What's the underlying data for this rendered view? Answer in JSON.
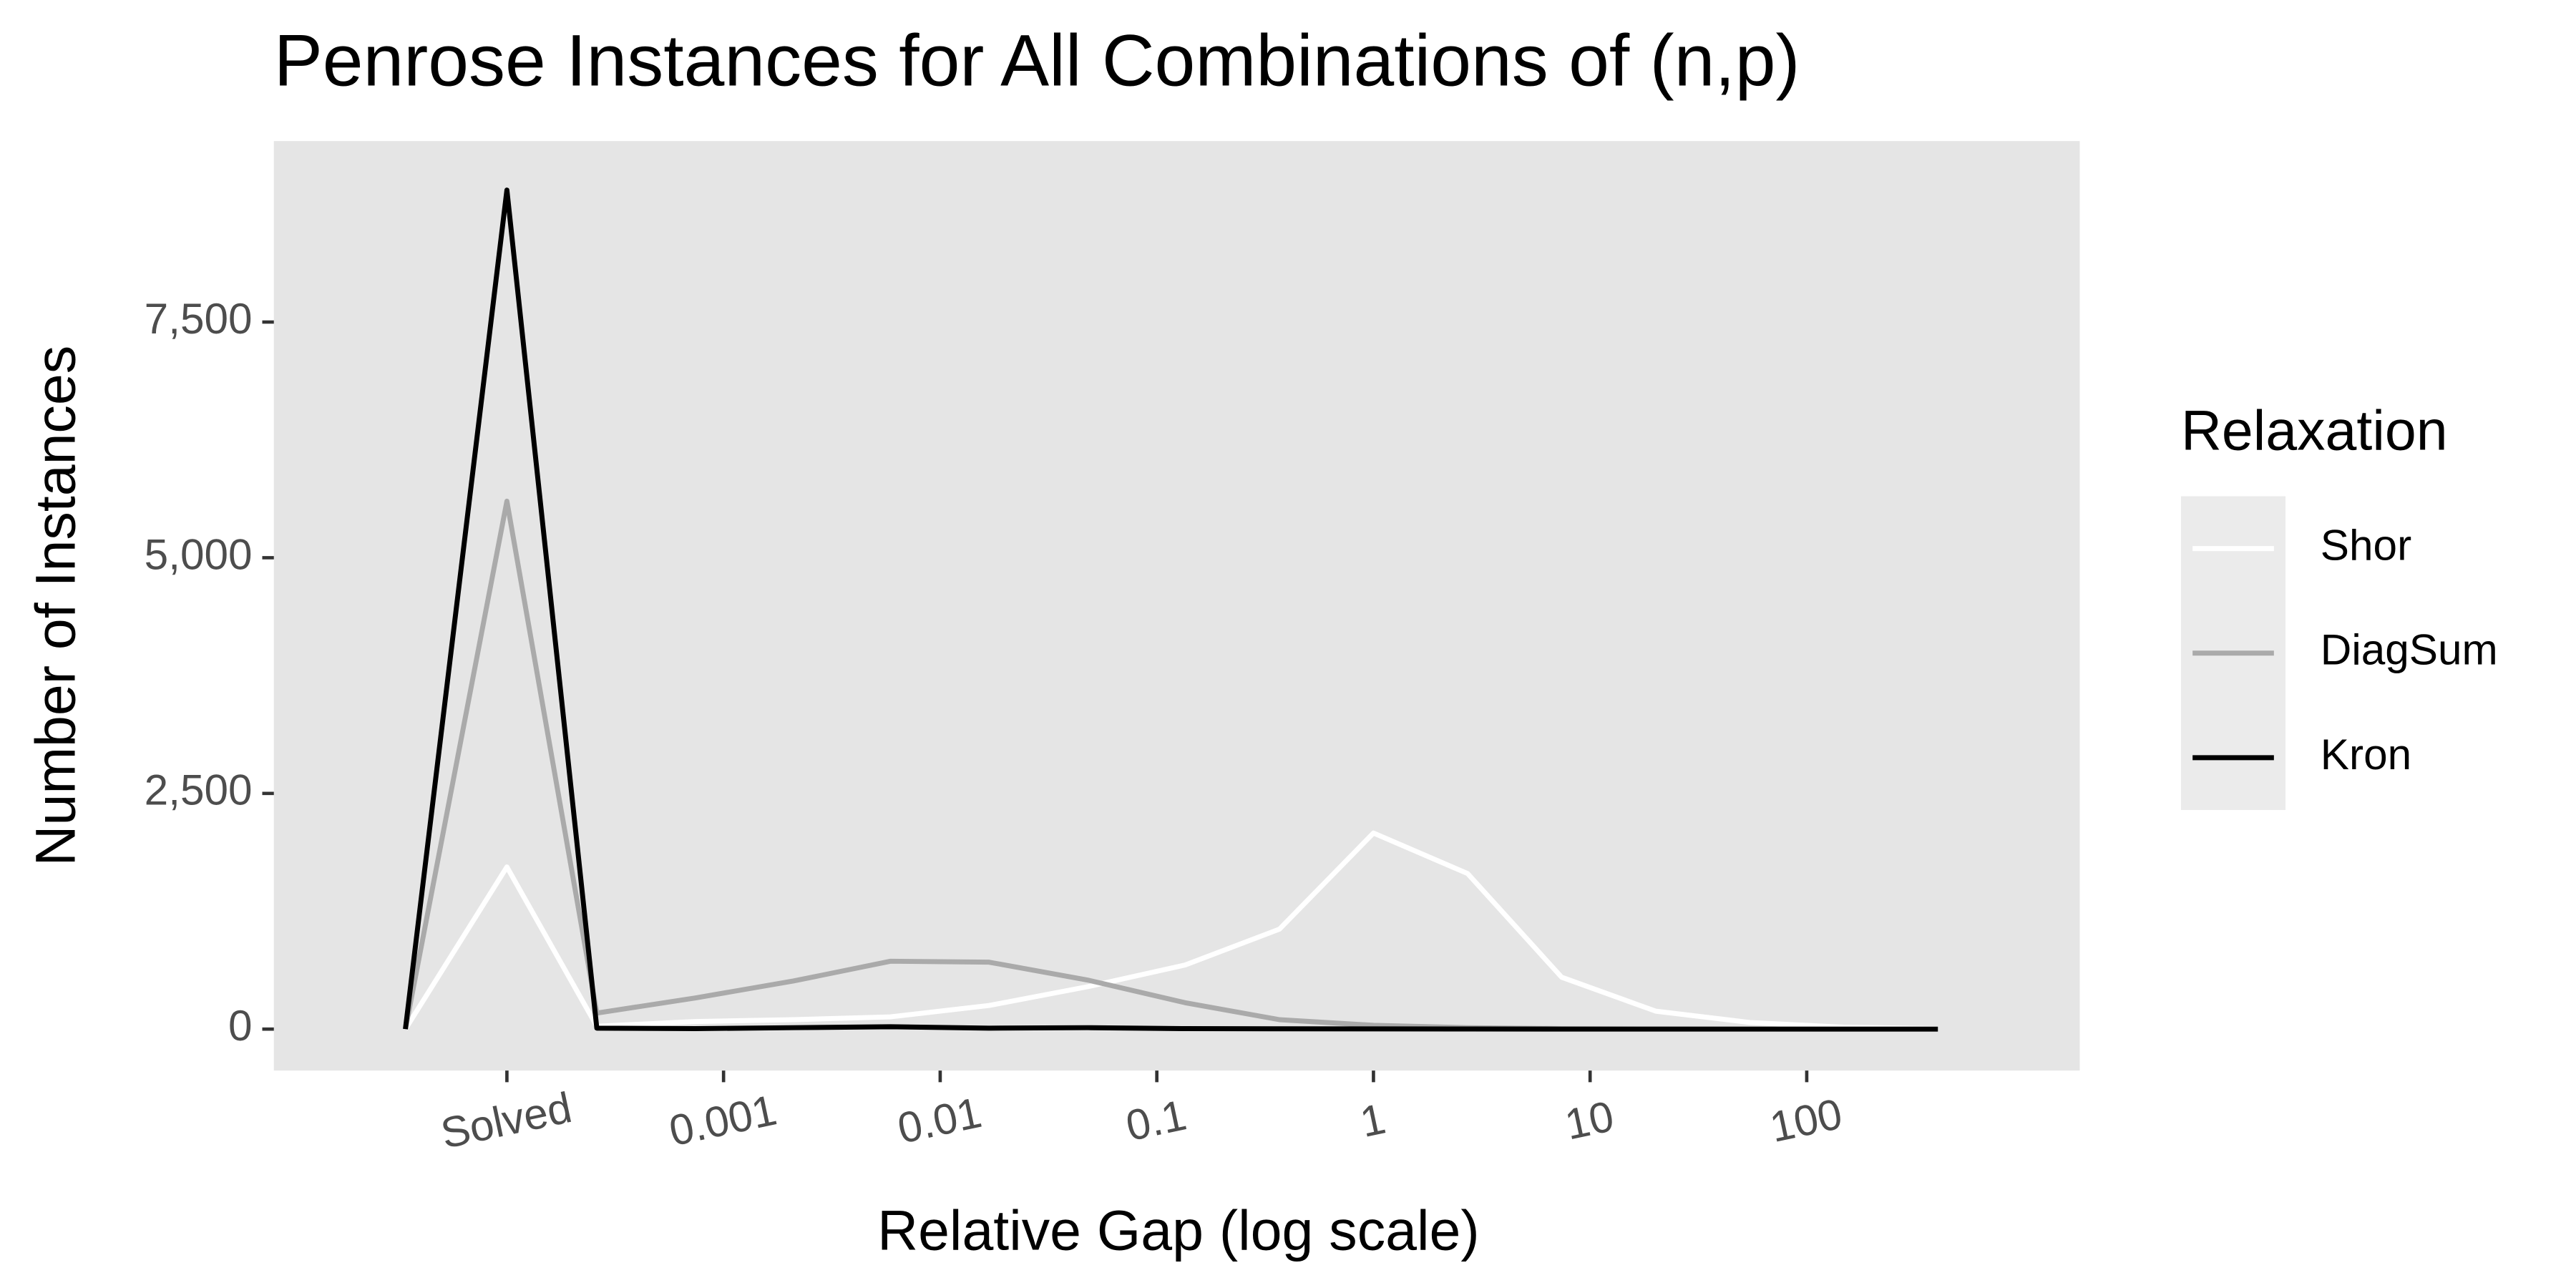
{
  "chart_data": {
    "type": "line",
    "title": "Penrose Instances for All Combinations of (n,p)",
    "x_label": "Relative Gap (log scale)",
    "y_label": "Number of Instances",
    "x": [
      3.4e-05,
      0.0001,
      0.00026,
      0.00074,
      0.0021,
      0.0059,
      0.0168,
      0.048,
      0.135,
      0.368,
      1,
      2.72,
      7.39,
      20.1,
      54.6,
      148,
      403
    ],
    "series": [
      {
        "name": "Shor",
        "color": "#ffffff",
        "values": [
          0,
          1720,
          30,
          80,
          100,
          130,
          250,
          450,
          680,
          1060,
          2080,
          1650,
          550,
          190,
          70,
          20,
          5
        ]
      },
      {
        "name": "DiagSum",
        "color": "#aaaaaa",
        "values": [
          0,
          5600,
          170,
          330,
          510,
          720,
          710,
          520,
          280,
          100,
          40,
          15,
          5,
          2,
          1,
          0,
          0
        ]
      },
      {
        "name": "Kron",
        "color": "#000000",
        "values": [
          0,
          8900,
          10,
          5,
          15,
          25,
          10,
          15,
          5,
          3,
          2,
          1,
          0,
          0,
          0,
          0,
          0
        ]
      }
    ],
    "xscale": "log",
    "xlim": [
      8.4e-06,
      1820
    ],
    "ylim": [
      -440,
      9420
    ],
    "xticks": [
      {
        "value": 0.0001,
        "label": "Solved"
      },
      0.001,
      0.01,
      0.1,
      1,
      10,
      100
    ],
    "yticks": [
      0,
      {
        "value": 2500,
        "label": "2,500"
      },
      {
        "value": 5000,
        "label": "5,000"
      },
      {
        "value": 7500,
        "label": "7,500"
      }
    ],
    "grid": false,
    "legend_title": "Relaxation",
    "legend_position": "right",
    "panel_color": "#e5e5e5"
  }
}
